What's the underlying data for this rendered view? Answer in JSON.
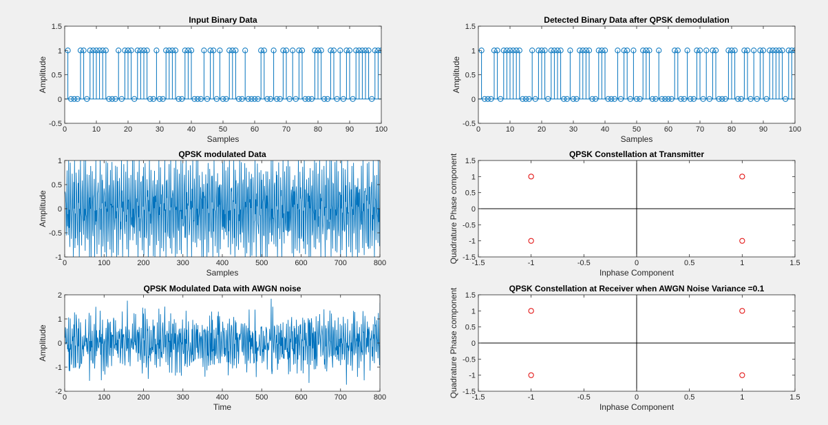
{
  "window": {
    "background": "#f0f0f0"
  },
  "colors": {
    "stem": "#0072bd",
    "marker_red": "#e00000",
    "axes": "#262626"
  },
  "chart_data": [
    {
      "id": "p1",
      "type": "stem",
      "title": "Input Binary Data",
      "xlabel": "Samples",
      "ylabel": "Amplitude",
      "xlim": [
        0,
        100
      ],
      "ylim": [
        -0.5,
        1.5
      ],
      "xticks": [
        0,
        10,
        20,
        30,
        40,
        50,
        60,
        70,
        80,
        90,
        100
      ],
      "yticks": [
        -0.5,
        0,
        0.5,
        1,
        1.5
      ],
      "xticklabels": [
        "0",
        "10",
        "20",
        "30",
        "40",
        "50",
        "60",
        "70",
        "80",
        "90",
        "100"
      ],
      "yticklabels": [
        "-0.5",
        "0",
        "0.5",
        "1",
        "1.5"
      ],
      "x_start": 1,
      "values": [
        1,
        0,
        0,
        0,
        1,
        1,
        0,
        1,
        1,
        1,
        1,
        1,
        1,
        0,
        0,
        0,
        1,
        0,
        1,
        1,
        1,
        0,
        1,
        1,
        1,
        1,
        0,
        0,
        1,
        0,
        0,
        1,
        1,
        1,
        1,
        0,
        0,
        1,
        1,
        1,
        0,
        0,
        0,
        1,
        0,
        1,
        1,
        0,
        1,
        0,
        0,
        1,
        1,
        1,
        0,
        0,
        1,
        0,
        0,
        0,
        0,
        1,
        1,
        0,
        0,
        1,
        0,
        0,
        1,
        1,
        0,
        1,
        0,
        1,
        1,
        0,
        0,
        0,
        1,
        1,
        1,
        0,
        0,
        1,
        1,
        0,
        1,
        0,
        1,
        1,
        0,
        1,
        1,
        1,
        1,
        1,
        0,
        1,
        1,
        1
      ]
    },
    {
      "id": "p2",
      "type": "stem",
      "title": "Detected Binary Data after QPSK demodulation",
      "xlabel": "Samples",
      "ylabel": "Amplitude",
      "xlim": [
        0,
        100
      ],
      "ylim": [
        -0.5,
        1.5
      ],
      "xticks": [
        0,
        10,
        20,
        30,
        40,
        50,
        60,
        70,
        80,
        90,
        100
      ],
      "yticks": [
        -0.5,
        0,
        0.5,
        1,
        1.5
      ],
      "xticklabels": [
        "0",
        "10",
        "20",
        "30",
        "40",
        "50",
        "60",
        "70",
        "80",
        "90",
        "100"
      ],
      "yticklabels": [
        "-0.5",
        "0",
        "0.5",
        "1",
        "1.5"
      ],
      "x_start": 1,
      "values": [
        1,
        0,
        0,
        0,
        1,
        1,
        0,
        1,
        1,
        1,
        1,
        1,
        1,
        0,
        0,
        0,
        1,
        0,
        1,
        1,
        1,
        0,
        1,
        1,
        1,
        1,
        0,
        0,
        1,
        0,
        0,
        1,
        1,
        1,
        1,
        0,
        0,
        1,
        1,
        1,
        0,
        0,
        0,
        1,
        0,
        1,
        1,
        0,
        1,
        0,
        0,
        1,
        1,
        1,
        0,
        0,
        1,
        0,
        0,
        0,
        0,
        1,
        1,
        0,
        0,
        1,
        0,
        0,
        1,
        1,
        0,
        1,
        0,
        1,
        1,
        0,
        0,
        0,
        1,
        1,
        1,
        0,
        0,
        1,
        1,
        0,
        1,
        0,
        1,
        1,
        0,
        1,
        1,
        1,
        1,
        1,
        0,
        1,
        1,
        1
      ]
    },
    {
      "id": "p3",
      "type": "line",
      "title": "QPSK modulated Data",
      "xlabel": "Samples",
      "ylabel": "Amplitude",
      "xlim": [
        0,
        800
      ],
      "ylim": [
        -1,
        1
      ],
      "xticks": [
        0,
        100,
        200,
        300,
        400,
        500,
        600,
        700,
        800
      ],
      "yticks": [
        -1,
        -0.5,
        0,
        0.5,
        1
      ],
      "xticklabels": [
        "0",
        "100",
        "200",
        "300",
        "400",
        "500",
        "600",
        "700",
        "800"
      ],
      "yticklabels": [
        "-1",
        "-0.5",
        "0",
        "0.5",
        "1"
      ],
      "samples": 800
    },
    {
      "id": "p4",
      "type": "scatter",
      "title": "QPSK Constellation at Transmitter",
      "xlabel": "Inphase Component",
      "ylabel": "Quadrature Phase component",
      "xlim": [
        -1.5,
        1.5
      ],
      "ylim": [
        -1.5,
        1.5
      ],
      "xticks": [
        -1.5,
        -1,
        -0.5,
        0,
        0.5,
        1,
        1.5
      ],
      "yticks": [
        -1.5,
        -1,
        -0.5,
        0,
        0.5,
        1,
        1.5
      ],
      "xticklabels": [
        "-1.5",
        "-1",
        "-0.5",
        "0",
        "0.5",
        "1",
        "1.5"
      ],
      "yticklabels": [
        "-1.5",
        "-1",
        "-0.5",
        "0",
        "0.5",
        "1",
        "1.5"
      ],
      "points": [
        [
          -1,
          1
        ],
        [
          1,
          1
        ],
        [
          -1,
          -1
        ],
        [
          1,
          -1
        ]
      ]
    },
    {
      "id": "p5",
      "type": "line",
      "title": "QPSK Modulated Data with AWGN noise",
      "xlabel": "Time",
      "ylabel": "Amplitude",
      "xlim": [
        0,
        800
      ],
      "ylim": [
        -2,
        2
      ],
      "xticks": [
        0,
        100,
        200,
        300,
        400,
        500,
        600,
        700,
        800
      ],
      "yticks": [
        -2,
        -1,
        0,
        1,
        2
      ],
      "xticklabels": [
        "0",
        "100",
        "200",
        "300",
        "400",
        "500",
        "600",
        "700",
        "800"
      ],
      "yticklabels": [
        "-2",
        "-1",
        "0",
        "1",
        "2"
      ],
      "samples": 800
    },
    {
      "id": "p6",
      "type": "scatter",
      "title": "QPSK Constellation at Receiver when AWGN Noise Variance =0.1",
      "xlabel": "Inphase Component",
      "ylabel": "Quadrature Phase component",
      "xlim": [
        -1.5,
        1.5
      ],
      "ylim": [
        -1.5,
        1.5
      ],
      "xticks": [
        -1.5,
        -1,
        -0.5,
        0,
        0.5,
        1,
        1.5
      ],
      "yticks": [
        -1.5,
        -1,
        -0.5,
        0,
        0.5,
        1,
        1.5
      ],
      "xticklabels": [
        "-1.5",
        "-1",
        "-0.5",
        "0",
        "0.5",
        "1",
        "1.5"
      ],
      "yticklabels": [
        "-1.5",
        "-1",
        "-0.5",
        "0",
        "0.5",
        "1",
        "1.5"
      ],
      "points": [
        [
          -1,
          1
        ],
        [
          1,
          1
        ],
        [
          -1,
          -1
        ],
        [
          1,
          -1
        ]
      ]
    }
  ]
}
